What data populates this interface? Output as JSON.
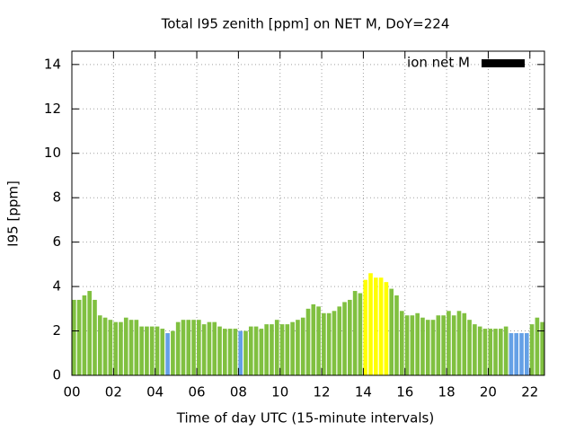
{
  "chart_data": {
    "type": "bar",
    "title": "Total I95 zenith [ppm] on NET M, DoY=224",
    "x_label": "Time of day UTC (15-minute intervals)",
    "y_label": "I95 [ppm]",
    "x": [
      0,
      0.25,
      0.5,
      0.75,
      1,
      1.25,
      1.5,
      1.75,
      2,
      2.25,
      2.5,
      2.75,
      3,
      3.25,
      3.5,
      3.75,
      4,
      4.25,
      4.5,
      4.75,
      5,
      5.25,
      5.5,
      5.75,
      6,
      6.25,
      6.5,
      6.75,
      7,
      7.25,
      7.5,
      7.75,
      8,
      8.25,
      8.5,
      8.75,
      9,
      9.25,
      9.5,
      9.75,
      10,
      10.25,
      10.5,
      10.75,
      11,
      11.25,
      11.5,
      11.75,
      12,
      12.25,
      12.5,
      12.75,
      13,
      13.25,
      13.5,
      13.75,
      14,
      14.25,
      14.5,
      14.75,
      15,
      15.25,
      15.5,
      15.75,
      16,
      16.25,
      16.5,
      16.75,
      17,
      17.25,
      17.5,
      17.75,
      18,
      18.25,
      18.5,
      18.75,
      19,
      19.25,
      19.5,
      19.75,
      20,
      20.25,
      20.5,
      20.75,
      21,
      21.25,
      21.5,
      21.75,
      22,
      22.25,
      22.5
    ],
    "series": [
      {
        "name": "ion net M",
        "color": "#000000",
        "values": [
          3.4,
          3.4,
          3.6,
          3.8,
          3.4,
          2.7,
          2.6,
          2.5,
          2.4,
          2.4,
          2.6,
          2.5,
          2.5,
          2.2,
          2.2,
          2.2,
          2.2,
          2.1,
          1.9,
          2.0,
          2.4,
          2.5,
          2.5,
          2.5,
          2.5,
          2.3,
          2.4,
          2.4,
          2.2,
          2.1,
          2.1,
          2.1,
          2.0,
          2.0,
          2.2,
          2.2,
          2.1,
          2.3,
          2.3,
          2.5,
          2.3,
          2.3,
          2.4,
          2.5,
          2.6,
          3.0,
          3.2,
          3.1,
          2.8,
          2.8,
          2.9,
          3.1,
          3.3,
          3.4,
          3.8,
          3.7,
          4.3,
          4.6,
          4.4,
          4.4,
          4.2,
          3.9,
          3.6,
          2.9,
          2.7,
          2.7,
          2.8,
          2.6,
          2.5,
          2.5,
          2.7,
          2.7,
          2.9,
          2.7,
          2.9,
          2.8,
          2.5,
          2.3,
          2.2,
          2.1,
          2.1,
          2.1,
          2.1,
          2.2,
          1.9,
          1.9,
          1.9,
          1.9,
          2.3,
          2.6,
          2.4
        ],
        "bar_colors": [
          "#80c040",
          "#80c040",
          "#80c040",
          "#80c040",
          "#80c040",
          "#80c040",
          "#80c040",
          "#80c040",
          "#80c040",
          "#80c040",
          "#80c040",
          "#80c040",
          "#80c040",
          "#80c040",
          "#80c040",
          "#80c040",
          "#80c040",
          "#80c040",
          "#64a0e6",
          "#80c040",
          "#80c040",
          "#80c040",
          "#80c040",
          "#80c040",
          "#80c040",
          "#80c040",
          "#80c040",
          "#80c040",
          "#80c040",
          "#80c040",
          "#80c040",
          "#80c040",
          "#64a0e6",
          "#80c040",
          "#80c040",
          "#80c040",
          "#80c040",
          "#80c040",
          "#80c040",
          "#80c040",
          "#80c040",
          "#80c040",
          "#80c040",
          "#80c040",
          "#80c040",
          "#80c040",
          "#80c040",
          "#80c040",
          "#80c040",
          "#80c040",
          "#80c040",
          "#80c040",
          "#80c040",
          "#80c040",
          "#80c040",
          "#80c040",
          "#ffff00",
          "#ffff00",
          "#ffff00",
          "#ffff00",
          "#ffff00",
          "#80c040",
          "#80c040",
          "#80c040",
          "#80c040",
          "#80c040",
          "#80c040",
          "#80c040",
          "#80c040",
          "#80c040",
          "#80c040",
          "#80c040",
          "#80c040",
          "#80c040",
          "#80c040",
          "#80c040",
          "#80c040",
          "#80c040",
          "#80c040",
          "#80c040",
          "#80c040",
          "#80c040",
          "#80c040",
          "#80c040",
          "#64a0e6",
          "#64a0e6",
          "#64a0e6",
          "#64a0e6",
          "#80c040",
          "#80c040",
          "#80c040"
        ]
      }
    ],
    "bar_width": 0.2,
    "xlim": [
      0,
      22.7
    ],
    "ylim": [
      0,
      14.6
    ],
    "xticks": [
      {
        "value": 0,
        "label": "00"
      },
      {
        "value": 2,
        "label": "02"
      },
      {
        "value": 4,
        "label": "04"
      },
      {
        "value": 6,
        "label": "06"
      },
      {
        "value": 8,
        "label": "08"
      },
      {
        "value": 10,
        "label": "10"
      },
      {
        "value": 12,
        "label": "12"
      },
      {
        "value": 14,
        "label": "14"
      },
      {
        "value": 16,
        "label": "16"
      },
      {
        "value": 18,
        "label": "18"
      },
      {
        "value": 20,
        "label": "20"
      },
      {
        "value": 22,
        "label": "22"
      }
    ],
    "yticks": [
      0,
      2,
      4,
      6,
      8,
      10,
      12,
      14
    ],
    "grid": true,
    "legend": "upper right"
  }
}
